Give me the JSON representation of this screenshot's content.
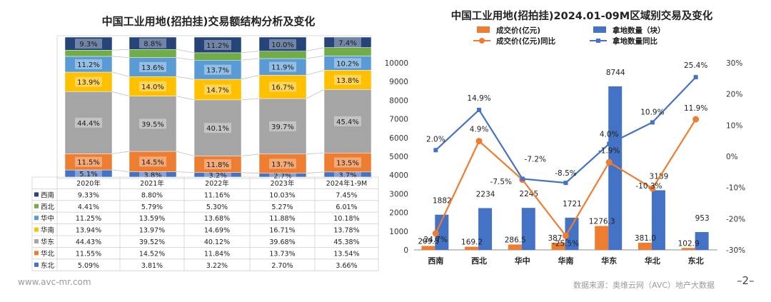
{
  "page": {
    "website": "www.avc-mr.com",
    "source": "数据来源：奥维云网（AVC）地产大数据",
    "page_number": "–2–"
  },
  "chart_data": [
    {
      "type": "stacked-bar-with-table",
      "title": "中国工业用地(招拍挂)交易额结构分析及变化",
      "categories": [
        "2020年",
        "2021年",
        "2022年",
        "2023年",
        "2024年1-9M"
      ],
      "series": [
        {
          "name": "东北",
          "color": "#4472c4",
          "values": [
            5.09,
            3.81,
            3.22,
            2.7,
            3.66
          ],
          "labels": [
            "5.1%",
            "3.8%",
            "3.2%",
            "2.7%",
            "3.7%"
          ],
          "table": [
            "5.09%",
            "3.81%",
            "3.22%",
            "2.70%",
            "3.66%"
          ]
        },
        {
          "name": "华北",
          "color": "#ed7d31",
          "values": [
            11.55,
            14.52,
            11.84,
            13.73,
            13.54
          ],
          "labels": [
            "11.5%",
            "14.5%",
            "11.8%",
            "13.7%",
            "13.5%"
          ],
          "table": [
            "11.55%",
            "14.52%",
            "11.84%",
            "13.73%",
            "13.54%"
          ]
        },
        {
          "name": "华东",
          "color": "#a5a5a5",
          "values": [
            44.43,
            39.52,
            40.12,
            39.68,
            45.38
          ],
          "labels": [
            "44.4%",
            "39.5%",
            "40.1%",
            "39.7%",
            "45.4%"
          ],
          "table": [
            "44.43%",
            "39.52%",
            "40.12%",
            "39.68%",
            "45.38%"
          ]
        },
        {
          "name": "华南",
          "color": "#ffc000",
          "values": [
            13.94,
            13.97,
            14.69,
            16.71,
            13.78
          ],
          "labels": [
            "13.9%",
            "14.0%",
            "14.7%",
            "16.7%",
            "13.8%"
          ],
          "table": [
            "13.94%",
            "13.97%",
            "14.69%",
            "16.71%",
            "13.78%"
          ]
        },
        {
          "name": "华中",
          "color": "#5b9bd5",
          "values": [
            11.25,
            13.59,
            13.68,
            11.88,
            10.18
          ],
          "labels": [
            "11.2%",
            "13.6%",
            "13.7%",
            "11.9%",
            "10.2%"
          ],
          "table": [
            "11.25%",
            "13.59%",
            "13.68%",
            "11.88%",
            "10.18%"
          ]
        },
        {
          "name": "西北",
          "color": "#70ad47",
          "values": [
            4.41,
            5.79,
            5.3,
            5.27,
            6.01
          ],
          "labels": [
            "",
            "",
            "",
            "",
            ""
          ],
          "table": [
            "4.41%",
            "5.79%",
            "5.30%",
            "5.27%",
            "6.01%"
          ]
        },
        {
          "name": "西南",
          "color": "#264478",
          "values": [
            9.33,
            8.8,
            11.16,
            10.03,
            7.45
          ],
          "labels": [
            "9.3%",
            "8.8%",
            "11.2%",
            "10.0%",
            "7.4%"
          ],
          "table": [
            "9.33%",
            "8.80%",
            "11.16%",
            "10.03%",
            "7.45%"
          ]
        }
      ]
    },
    {
      "type": "bar-line-combo",
      "title": "中国工业用地(招拍挂)2024.01-09M区域别交易及变化",
      "categories": [
        "西南",
        "西北",
        "华中",
        "华南",
        "华东",
        "华北",
        "东北"
      ],
      "legend": [
        "成交价(亿元)",
        "拿地数量（块）",
        "成交价(亿元)同比",
        "拿地数量同比"
      ],
      "bars": [
        {
          "name": "成交价(亿元)",
          "color": "#ed7d31",
          "values": [
            209.5,
            169.2,
            286.5,
            387.7,
            1276.3,
            381.0,
            102.9
          ],
          "labels": [
            "209.5",
            "169.2",
            "286.5",
            "387.7",
            "1276.3",
            "381.0",
            "102.9"
          ]
        },
        {
          "name": "拿地数量（块）",
          "color": "#4472c4",
          "values": [
            1882,
            2234,
            2245,
            1721,
            8744,
            3189,
            953
          ],
          "labels": [
            "1882",
            "2234",
            "2245",
            "1721",
            "8744",
            "3189",
            "953"
          ]
        }
      ],
      "lines": [
        {
          "name": "成交价(亿元)同比",
          "color": "#ed7d31",
          "values": [
            -24.7,
            4.9,
            -7.5,
            -25.5,
            -1.9,
            -10.3,
            11.9
          ],
          "labels": [
            "-24.7%",
            "4.9%",
            "-7.5%",
            "-25.5%",
            "-1.9%",
            "-10.3%",
            "11.9%"
          ]
        },
        {
          "name": "拿地数量同比",
          "color": "#4472c4",
          "values": [
            2.0,
            14.9,
            -7.2,
            -8.5,
            4.0,
            10.9,
            25.4
          ],
          "labels": [
            "2.0%",
            "14.9%",
            "-7.2%",
            "-8.5%",
            "4.0%",
            "10.9%",
            "25.4%"
          ]
        }
      ],
      "ylim_left": [
        0,
        10000
      ],
      "yticks_left": [
        "0",
        "1000",
        "2000",
        "3000",
        "4000",
        "5000",
        "6000",
        "7000",
        "8000",
        "9000",
        "10000"
      ],
      "ylim_right": [
        -30,
        30
      ],
      "yticks_right": [
        "-30%",
        "-20%",
        "-10%",
        "0%",
        "10%",
        "20%",
        "30%"
      ]
    }
  ]
}
